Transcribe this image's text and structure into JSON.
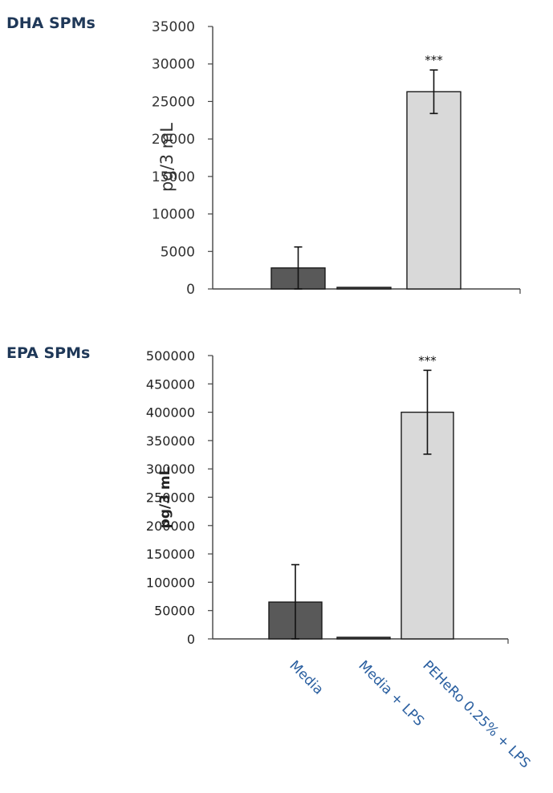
{
  "chart_data": [
    {
      "type": "bar",
      "title": "DHA SPMs",
      "ylabel": "pg/3 mL",
      "xlabel": "",
      "categories": [
        "Media",
        "Media + LPS",
        "PEHeRo 0.25% + LPS"
      ],
      "values": [
        2800,
        50,
        26300
      ],
      "errors": [
        2800,
        0,
        2900
      ],
      "annotations": [
        "",
        "",
        "***"
      ],
      "colors": [
        "#595959",
        "#595959",
        "#d9d9d9"
      ],
      "ylim": [
        0,
        35000
      ],
      "yticks": [
        0,
        5000,
        10000,
        15000,
        20000,
        25000,
        30000,
        35000
      ],
      "grid": false
    },
    {
      "type": "bar",
      "title": "EPA SPMs",
      "ylabel": "pg/3 mL",
      "xlabel": "",
      "categories": [
        "Media",
        "Media + LPS",
        "PEHeRo 0.25% + LPS"
      ],
      "values": [
        65000,
        0,
        400000
      ],
      "errors": [
        66000,
        0,
        74000
      ],
      "annotations": [
        "",
        "",
        "***"
      ],
      "colors": [
        "#595959",
        "#595959",
        "#d9d9d9"
      ],
      "ylim": [
        0,
        500000
      ],
      "yticks": [
        0,
        50000,
        100000,
        150000,
        200000,
        250000,
        300000,
        350000,
        400000,
        450000,
        500000
      ],
      "grid": false
    }
  ]
}
